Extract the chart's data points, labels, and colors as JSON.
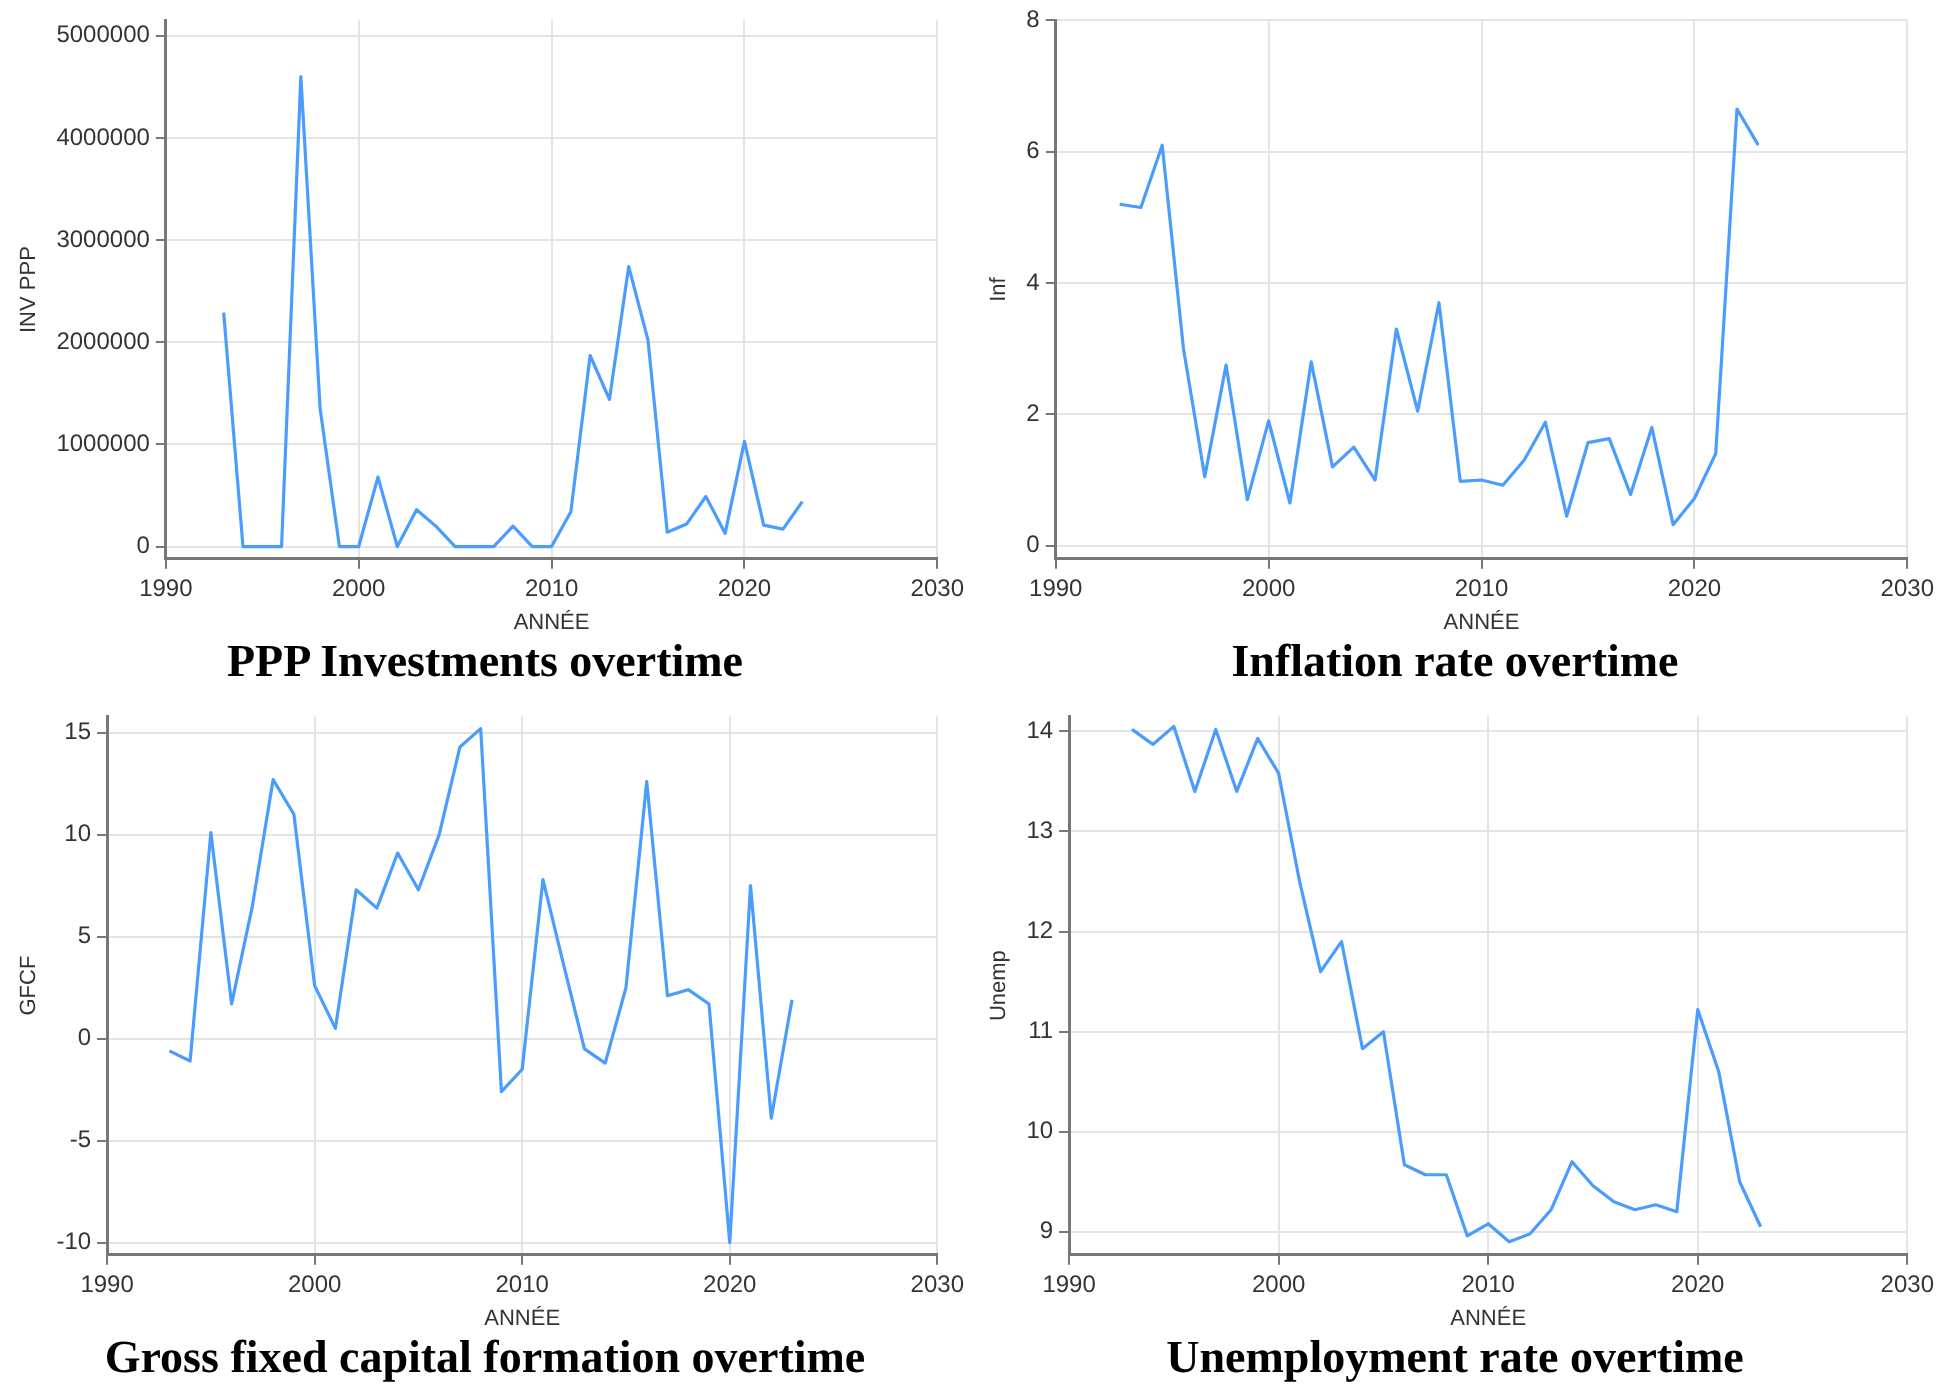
{
  "chart_data": [
    {
      "type": "line",
      "title": "PPP Investments overtime",
      "xlabel": "ANNÉE",
      "ylabel": "INV PPP",
      "xlim": [
        1990,
        2030
      ],
      "xticks": [
        1990,
        2000,
        2010,
        2020,
        2030
      ],
      "ylim": [
        -120000,
        5150000
      ],
      "yticks": [
        0,
        1000000,
        2000000,
        3000000,
        4000000,
        5000000
      ],
      "grid": true,
      "x": [
        1993,
        1994,
        1995,
        1996,
        1997,
        1998,
        1999,
        2000,
        2001,
        2002,
        2003,
        2004,
        2005,
        2006,
        2007,
        2008,
        2009,
        2010,
        2011,
        2012,
        2013,
        2014,
        2015,
        2016,
        2017,
        2018,
        2019,
        2020,
        2021,
        2022,
        2023
      ],
      "series": [
        {
          "color": "#4a9cff",
          "values": [
            2290000,
            0,
            0,
            0,
            4600000,
            1350000,
            0,
            0,
            680000,
            0,
            360000,
            200000,
            0,
            0,
            0,
            200000,
            0,
            0,
            340000,
            1870000,
            1440000,
            2740000,
            2020000,
            140000,
            220000,
            490000,
            130000,
            1030000,
            210000,
            170000,
            440000
          ]
        }
      ]
    },
    {
      "type": "line",
      "title": "Inflation rate overtime",
      "xlabel": "ANNÉE",
      "ylabel": "Inf",
      "xlim": [
        1990,
        2030
      ],
      "xticks": [
        1990,
        2000,
        2010,
        2020,
        2030
      ],
      "ylim": [
        -0.2,
        8
      ],
      "yticks": [
        0,
        2,
        4,
        6,
        8
      ],
      "grid": true,
      "x": [
        1993,
        1994,
        1995,
        1996,
        1997,
        1998,
        1999,
        2000,
        2001,
        2002,
        2003,
        2004,
        2005,
        2006,
        2007,
        2008,
        2009,
        2010,
        2011,
        2012,
        2013,
        2014,
        2015,
        2016,
        2017,
        2018,
        2019,
        2020,
        2021,
        2022,
        2023
      ],
      "series": [
        {
          "color": "#4a9cff",
          "values": [
            5.2,
            5.15,
            6.1,
            3.0,
            1.05,
            2.75,
            0.7,
            1.9,
            0.65,
            2.8,
            1.2,
            1.5,
            1.0,
            3.3,
            2.05,
            3.7,
            0.98,
            1.0,
            0.92,
            1.3,
            1.88,
            0.45,
            1.57,
            1.63,
            0.78,
            1.8,
            0.32,
            0.72,
            1.4,
            6.65,
            6.1
          ]
        }
      ]
    },
    {
      "type": "line",
      "title": "Gross fixed capital formation overtime",
      "xlabel": "ANNÉE",
      "ylabel": "GFCF",
      "xlim": [
        1990,
        2030
      ],
      "xticks": [
        1990,
        2000,
        2010,
        2020,
        2030
      ],
      "ylim": [
        -10.6,
        15.8
      ],
      "yticks": [
        -10,
        -5,
        0,
        5,
        10,
        15
      ],
      "grid": true,
      "x": [
        1993,
        1994,
        1995,
        1996,
        1997,
        1998,
        1999,
        2000,
        2001,
        2002,
        2003,
        2004,
        2005,
        2006,
        2007,
        2008,
        2009,
        2010,
        2011,
        2012,
        2013,
        2014,
        2015,
        2016,
        2017,
        2018,
        2019,
        2020,
        2021,
        2022,
        2023
      ],
      "series": [
        {
          "color": "#4a9cff",
          "values": [
            -0.6,
            -1.1,
            10.1,
            1.7,
            6.5,
            12.7,
            11.0,
            2.6,
            0.5,
            7.3,
            6.4,
            9.1,
            7.3,
            10.0,
            14.3,
            15.2,
            -2.6,
            -1.5,
            7.8,
            3.6,
            -0.5,
            -1.2,
            2.5,
            12.6,
            2.1,
            2.4,
            1.7,
            -10,
            7.5,
            -3.9,
            1.9
          ]
        }
      ]
    },
    {
      "type": "line",
      "title": "Unemployment rate overtime",
      "xlabel": "ANNÉE",
      "ylabel": "Unemp",
      "xlim": [
        1990,
        2030
      ],
      "xticks": [
        1990,
        2000,
        2010,
        2020,
        2030
      ],
      "ylim": [
        8.77,
        14.15
      ],
      "yticks": [
        9,
        10,
        11,
        12,
        13,
        14
      ],
      "grid": true,
      "x": [
        1993,
        1994,
        1995,
        1996,
        1997,
        1998,
        1999,
        2000,
        2001,
        2002,
        2003,
        2004,
        2005,
        2006,
        2007,
        2008,
        2009,
        2010,
        2011,
        2012,
        2013,
        2014,
        2015,
        2016,
        2017,
        2018,
        2019,
        2020,
        2021,
        2022,
        2023
      ],
      "series": [
        {
          "color": "#4a9cff",
          "values": [
            14.02,
            13.87,
            14.05,
            13.4,
            14.02,
            13.4,
            13.93,
            13.58,
            12.5,
            11.6,
            11.9,
            10.83,
            11.0,
            9.67,
            9.57,
            9.57,
            8.96,
            9.08,
            8.9,
            8.98,
            9.22,
            9.7,
            9.46,
            9.3,
            9.22,
            9.27,
            9.2,
            11.22,
            10.6,
            9.5,
            9.05
          ]
        }
      ]
    }
  ]
}
